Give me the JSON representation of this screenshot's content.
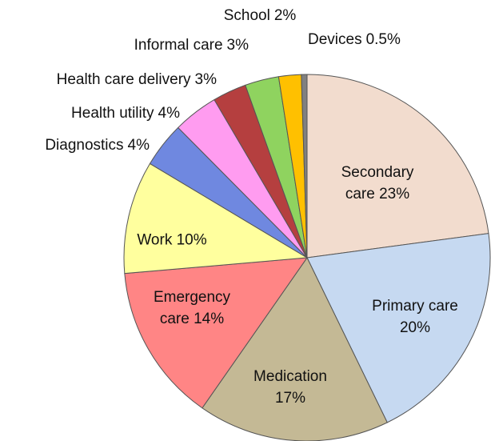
{
  "chart_data": {
    "type": "pie",
    "categories": [
      "Secondary care",
      "Primary care",
      "Medication",
      "Emergency care",
      "Work",
      "Diagnostics",
      "Health utility",
      "Health care delivery",
      "Informal care",
      "School",
      "Devices"
    ],
    "values": [
      23,
      20,
      17,
      14,
      10,
      4,
      4,
      3,
      3,
      2,
      0.5
    ],
    "value_labels": [
      "23%",
      "20%",
      "17%",
      "14%",
      "10%",
      "4%",
      "4%",
      "3%",
      "3%",
      "2%",
      "0.5%"
    ],
    "colors": [
      "#f2dcce",
      "#c6d9f1",
      "#c4b995",
      "#ff8585",
      "#ffff9e",
      "#6f88e0",
      "#ff9cf0",
      "#b53f3f",
      "#8fd35f",
      "#ffc000",
      "#808080"
    ]
  }
}
